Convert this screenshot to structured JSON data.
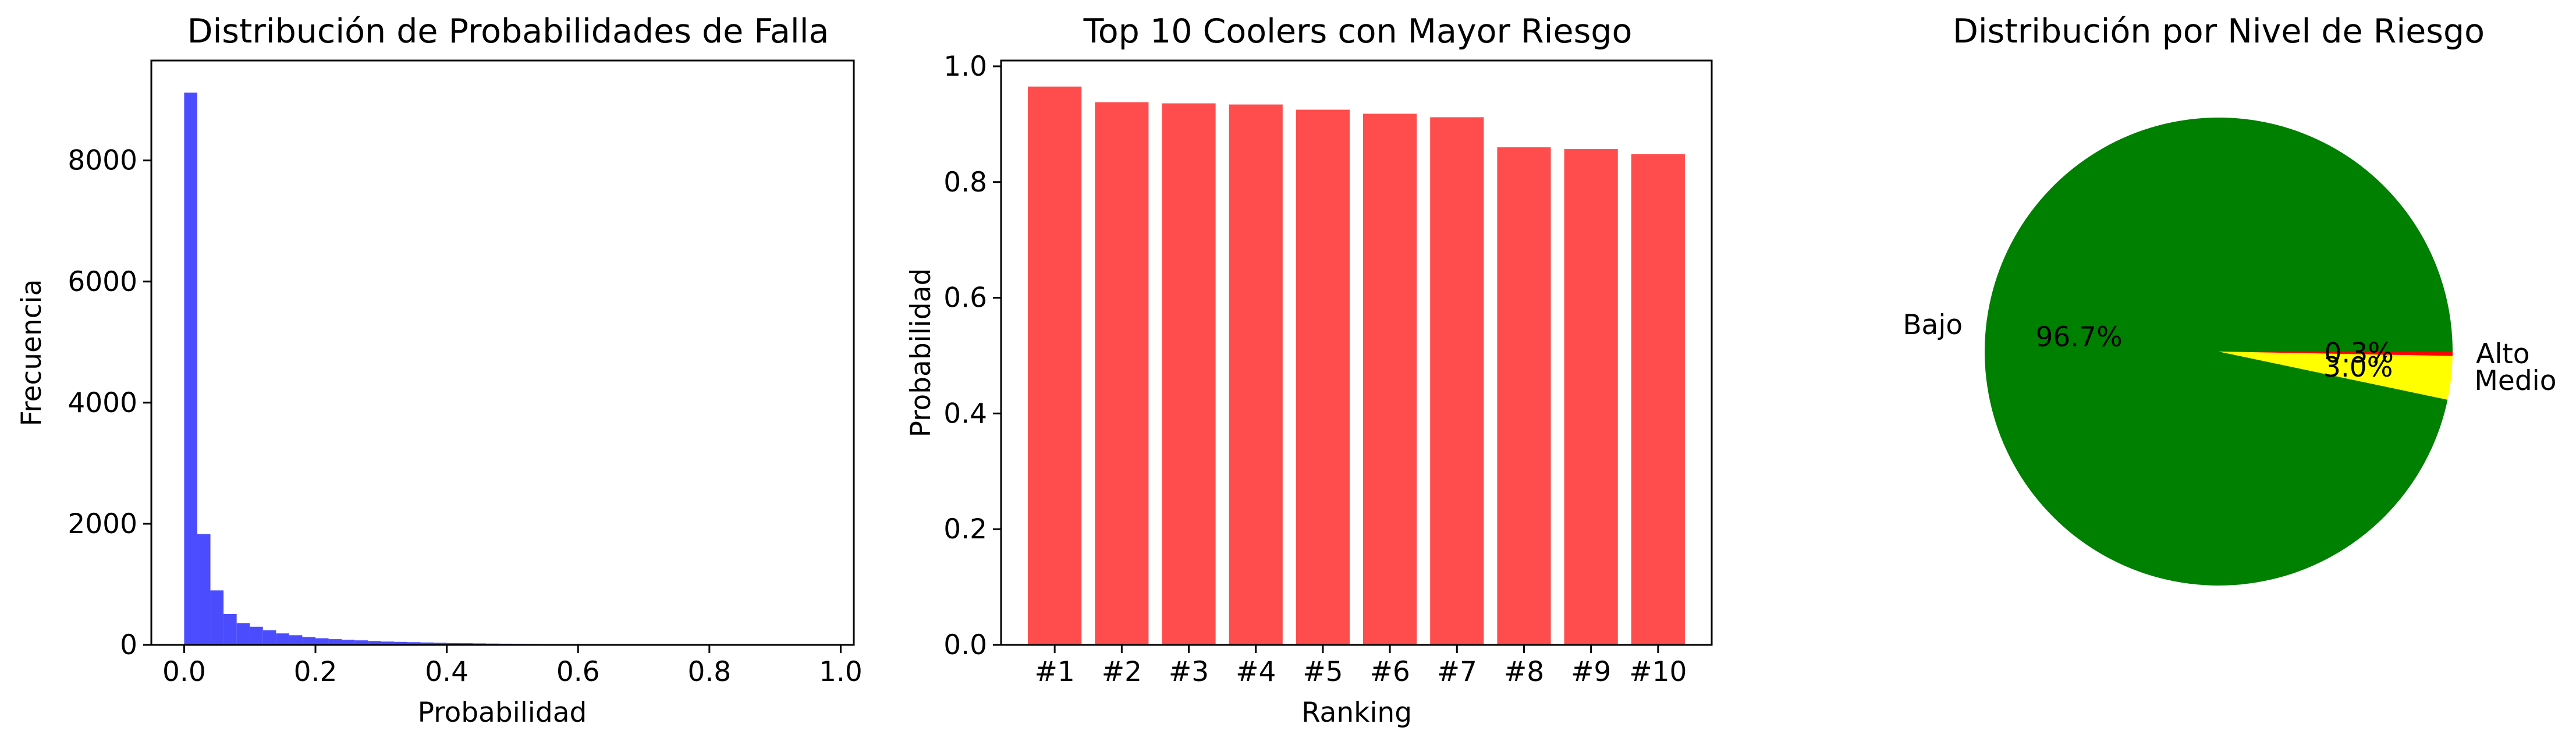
{
  "chart_data": [
    {
      "type": "bar",
      "subtype": "histogram",
      "title": "Distribución de Probabilidades de Falla",
      "xlabel": "Probabilidad",
      "ylabel": "Frecuencia",
      "xlim": [
        -0.05,
        1.02
      ],
      "ylim": [
        0,
        9650
      ],
      "xticks": [
        "0.0",
        "0.2",
        "0.4",
        "0.6",
        "0.8",
        "1.0"
      ],
      "yticks": [
        "0",
        "2000",
        "4000",
        "6000",
        "8000"
      ],
      "color": "#4c4cff",
      "bin_edges": [
        0.0,
        0.02,
        0.04,
        0.06,
        0.08,
        0.1,
        0.12,
        0.14,
        0.16,
        0.18,
        0.2,
        0.22,
        0.24,
        0.26,
        0.28,
        0.3,
        0.32,
        0.34,
        0.36,
        0.38,
        0.4,
        0.42,
        0.44,
        0.46,
        0.48,
        0.5,
        0.52,
        0.54,
        0.56,
        0.58,
        0.6,
        0.62,
        0.64,
        0.66,
        0.68,
        0.7,
        0.72,
        0.74,
        0.76,
        0.78,
        0.8,
        0.82,
        0.84,
        0.86,
        0.88,
        0.9,
        0.92,
        0.94,
        0.96,
        0.98,
        1.0
      ],
      "counts": [
        9120,
        1830,
        900,
        510,
        360,
        300,
        240,
        190,
        160,
        130,
        110,
        95,
        85,
        75,
        65,
        55,
        50,
        45,
        40,
        35,
        30,
        28,
        25,
        22,
        20,
        18,
        16,
        14,
        12,
        10,
        9,
        8,
        7,
        6,
        5,
        5,
        4,
        4,
        3,
        3,
        3,
        2,
        2,
        2,
        2,
        2,
        1,
        1,
        1,
        1
      ]
    },
    {
      "type": "bar",
      "title": "Top 10 Coolers con Mayor Riesgo",
      "xlabel": "Ranking",
      "ylabel": "Probabilidad",
      "ylim": [
        0,
        1.01
      ],
      "yticks": [
        "0.0",
        "0.2",
        "0.4",
        "0.6",
        "0.8",
        "1.0"
      ],
      "categories": [
        "#1",
        "#2",
        "#3",
        "#4",
        "#5",
        "#6",
        "#7",
        "#8",
        "#9",
        "#10"
      ],
      "values": [
        0.965,
        0.938,
        0.936,
        0.934,
        0.925,
        0.918,
        0.912,
        0.86,
        0.857,
        0.848
      ],
      "color": "#ff4c4c"
    },
    {
      "type": "pie",
      "title": "Distribución por Nivel de Riesgo",
      "labels": [
        "Bajo",
        "Medio",
        "Alto"
      ],
      "values": [
        96.7,
        3.0,
        0.3
      ],
      "pct_labels": [
        "96.7%",
        "3.0%",
        "0.3%"
      ],
      "colors": [
        "#008000",
        "#ffff00",
        "#ff0000"
      ]
    }
  ]
}
